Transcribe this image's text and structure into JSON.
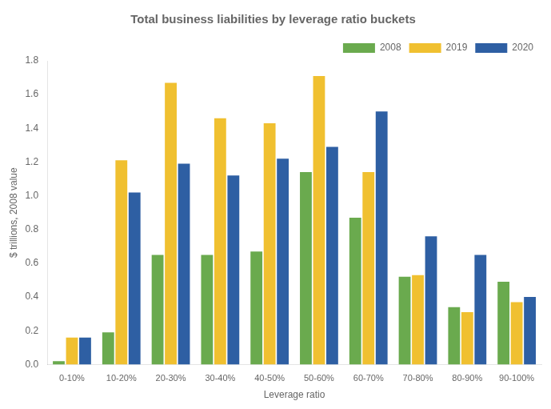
{
  "chart_data": {
    "type": "bar",
    "title": "Total business liabilities by leverage ratio buckets",
    "xlabel": "Leverage ratio",
    "ylabel": "$ trillions, 2008 value",
    "categories": [
      "0-10%",
      "10-20%",
      "20-30%",
      "30-40%",
      "40-50%",
      "50-60%",
      "60-70%",
      "70-80%",
      "80-90%",
      "90-100%"
    ],
    "series": [
      {
        "name": "2008",
        "color": "#6aaa4e",
        "values": [
          0.02,
          0.19,
          0.65,
          0.65,
          0.67,
          1.14,
          0.87,
          0.52,
          0.34,
          0.49
        ]
      },
      {
        "name": "2019",
        "color": "#f0c030",
        "values": [
          0.16,
          1.21,
          1.67,
          1.46,
          1.43,
          1.71,
          1.14,
          0.53,
          0.31,
          0.37
        ]
      },
      {
        "name": "2020",
        "color": "#2e5fa3",
        "values": [
          0.16,
          1.02,
          1.19,
          1.12,
          1.22,
          1.29,
          1.5,
          0.76,
          0.65,
          0.4
        ]
      }
    ],
    "ylim": [
      0,
      1.8
    ],
    "yticks": [
      {
        "value": 0,
        "label": "0.0"
      },
      0.2,
      0.4,
      0.6,
      0.8,
      {
        "value": 1.0,
        "label": "1.0"
      },
      1.2,
      1.4,
      1.6,
      1.8
    ],
    "grid": false,
    "legend": "upper right"
  }
}
